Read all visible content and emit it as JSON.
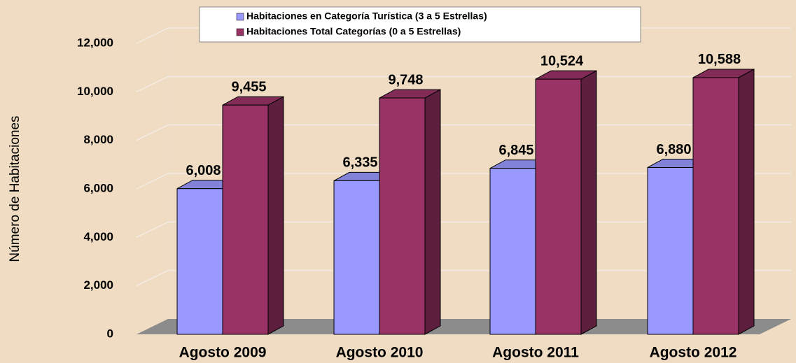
{
  "chart_data": {
    "type": "bar3d",
    "y_label": "Número de Habitaciones",
    "categories": [
      "Agosto 2009",
      "Agosto 2010",
      "Agosto 2011",
      "Agosto 2012"
    ],
    "series": [
      {
        "name": "Habitaciones en Categoría Turística (3 a 5 Estrellas)",
        "color": "#9999ff",
        "values": [
          6008,
          6335,
          6845,
          6880
        ],
        "value_labels": [
          "6,008",
          "6,335",
          "6,845",
          "6,880"
        ]
      },
      {
        "name": "Habitaciones Total Categorías (0 a 5 Estrellas)",
        "color": "#993366",
        "values": [
          9455,
          9748,
          10524,
          10588
        ],
        "value_labels": [
          "9,455",
          "9,748",
          "10,524",
          "10,588"
        ]
      }
    ],
    "ylim": [
      0,
      12000
    ],
    "yticks": [
      0,
      {
        "value": 2000,
        "label": "2,000"
      },
      {
        "value": 4000,
        "label": "4,000"
      },
      {
        "value": 6000,
        "label": "6,000"
      },
      {
        "value": 8000,
        "label": "8,000"
      },
      {
        "value": 10000,
        "label": "10,000"
      },
      {
        "value": 12000,
        "label": "12,000"
      }
    ],
    "grid": true,
    "legend": "top"
  }
}
